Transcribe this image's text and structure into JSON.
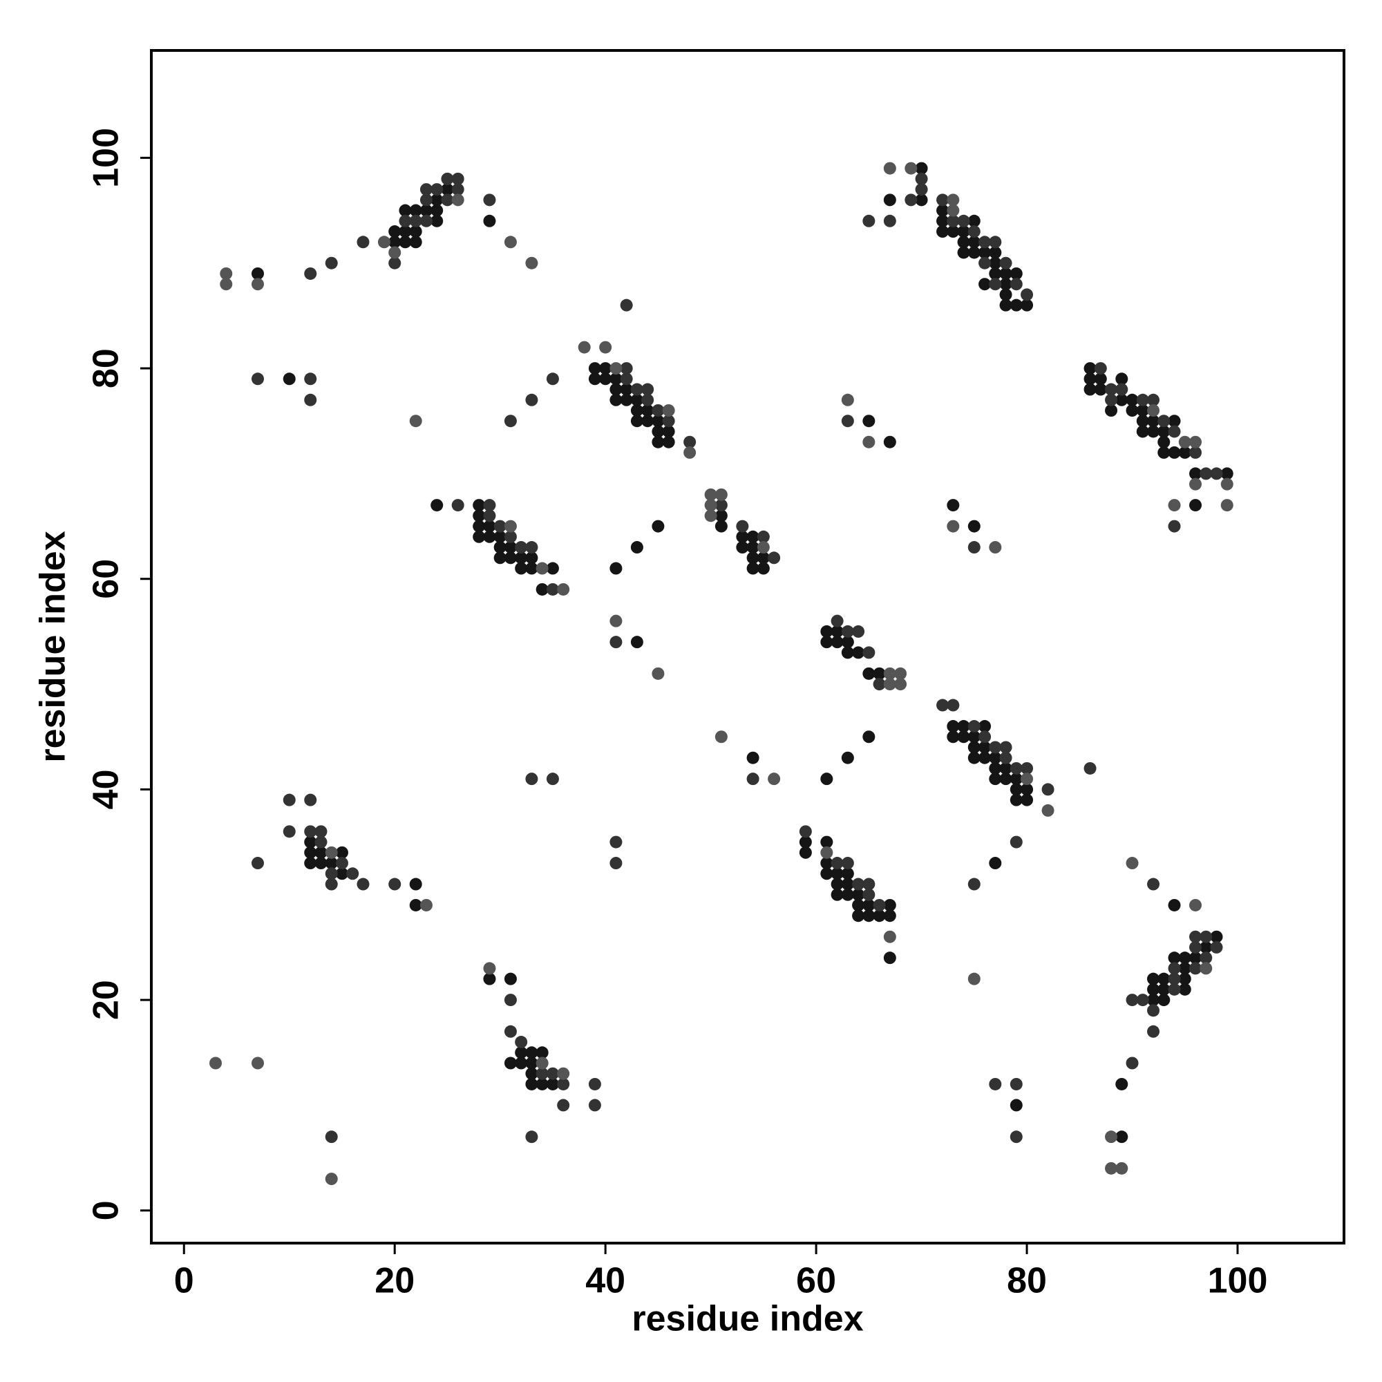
{
  "chart_data": {
    "type": "scatter",
    "x_label": "residue index",
    "y_label": "residue index",
    "xlim": [
      -3.1,
      110.1
    ],
    "ylim": [
      -3.1,
      110.2
    ],
    "xticks": [
      0,
      20,
      40,
      60,
      80,
      100
    ],
    "yticks": [
      0,
      20,
      40,
      60,
      80,
      100
    ],
    "grid": false,
    "series": [
      {
        "color": "#151515",
        "x": [
          7,
          20,
          20,
          21,
          21,
          21,
          22,
          22,
          22,
          23,
          24,
          24,
          24,
          25,
          29,
          70,
          70,
          67,
          72,
          72,
          72,
          73,
          74,
          74,
          75,
          75,
          74,
          75,
          76,
          77,
          77,
          76,
          77,
          78,
          78,
          79,
          78,
          78,
          79,
          80,
          10,
          39,
          40,
          39,
          40,
          41,
          41,
          42,
          41,
          42,
          43,
          43,
          44,
          43,
          44,
          45,
          45,
          46,
          45,
          46,
          65,
          67,
          86,
          86,
          87,
          86,
          87,
          89,
          89,
          88,
          90,
          90,
          91,
          91,
          92,
          91,
          92,
          93,
          93,
          94,
          93,
          94,
          95,
          96,
          99,
          96,
          24,
          28,
          28,
          28,
          29,
          28,
          29,
          30,
          30,
          31,
          30,
          31,
          32,
          33,
          32,
          33,
          35,
          34,
          41,
          43,
          45,
          51,
          51,
          53,
          54,
          53,
          54,
          54,
          55,
          54,
          55,
          73,
          75,
          43,
          61,
          62,
          61,
          62,
          63,
          63,
          64,
          65,
          66,
          54,
          61,
          63,
          65,
          73,
          74,
          76,
          73,
          74,
          75,
          75,
          76,
          75,
          76,
          77,
          77,
          78,
          77,
          78,
          79,
          79,
          80,
          79,
          80,
          12,
          12,
          13,
          15,
          12,
          13,
          14,
          15,
          22,
          22,
          59,
          61,
          59,
          61,
          61,
          62,
          63,
          62,
          63,
          62,
          63,
          64,
          64,
          65,
          67,
          64,
          65,
          66,
          67,
          67,
          77,
          94,
          98,
          97,
          94,
          95,
          96,
          95,
          92,
          93,
          95,
          92,
          93,
          95,
          92,
          93,
          29,
          31,
          32,
          33,
          34,
          31,
          32,
          33,
          33,
          33,
          34,
          35,
          79,
          89,
          89
        ],
        "values": [
          89,
          92,
          93,
          92,
          93,
          95,
          92,
          93,
          95,
          95,
          94,
          95,
          96,
          97,
          94,
          99,
          96,
          96,
          95,
          94,
          93,
          93,
          93,
          92,
          94,
          92,
          91,
          91,
          91,
          91,
          90,
          88,
          89,
          89,
          88,
          89,
          87,
          86,
          86,
          86,
          79,
          80,
          80,
          79,
          79,
          79,
          78,
          78,
          77,
          77,
          77,
          76,
          76,
          75,
          75,
          75,
          74,
          74,
          73,
          73,
          75,
          73,
          80,
          79,
          79,
          78,
          78,
          79,
          77,
          76,
          77,
          76,
          76,
          75,
          75,
          74,
          74,
          74,
          73,
          75,
          72,
          72,
          72,
          70,
          70,
          67,
          67,
          67,
          66,
          65,
          65,
          64,
          64,
          64,
          63,
          63,
          62,
          62,
          62,
          62,
          61,
          61,
          61,
          59,
          61,
          63,
          65,
          66,
          65,
          64,
          64,
          63,
          63,
          62,
          62,
          61,
          61,
          67,
          65,
          54,
          55,
          55,
          54,
          54,
          54,
          53,
          53,
          51,
          51,
          43,
          41,
          43,
          45,
          46,
          46,
          46,
          45,
          45,
          45,
          44,
          44,
          43,
          43,
          43,
          42,
          42,
          41,
          41,
          41,
          40,
          40,
          39,
          39,
          35,
          34,
          34,
          34,
          33,
          33,
          33,
          32,
          31,
          29,
          35,
          35,
          34,
          33,
          32,
          32,
          32,
          31,
          31,
          30,
          30,
          30,
          29,
          29,
          29,
          28,
          28,
          28,
          28,
          24,
          33,
          29,
          26,
          25,
          24,
          24,
          24,
          23,
          22,
          22,
          22,
          21,
          21,
          21,
          20,
          20,
          22,
          22,
          15,
          15,
          15,
          14,
          14,
          14,
          13,
          12,
          12,
          12,
          10,
          12,
          7
        ]
      },
      {
        "color": "#333333",
        "x": [
          12,
          14,
          17,
          20,
          22,
          21,
          23,
          23,
          23,
          24,
          25,
          25,
          26,
          26,
          29,
          70,
          70,
          69,
          65,
          67,
          72,
          73,
          74,
          75,
          76,
          76,
          77,
          78,
          77,
          79,
          80,
          42,
          7,
          12,
          12,
          31,
          33,
          35,
          42,
          42,
          43,
          44,
          44,
          45,
          46,
          48,
          63,
          87,
          88,
          88,
          89,
          91,
          92,
          93,
          94,
          96,
          97,
          98,
          94,
          26,
          29,
          29,
          30,
          31,
          32,
          33,
          35,
          51,
          53,
          55,
          56,
          75,
          41,
          62,
          63,
          64,
          65,
          66,
          54,
          72,
          73,
          75,
          76,
          77,
          78,
          78,
          79,
          80,
          82,
          86,
          33,
          35,
          10,
          12,
          10,
          12,
          13,
          13,
          15,
          14,
          16,
          14,
          17,
          7,
          20,
          41,
          41,
          59,
          62,
          63,
          64,
          65,
          65,
          66,
          75,
          79,
          92,
          96,
          97,
          96,
          98,
          97,
          94,
          96,
          94,
          94,
          90,
          91,
          92,
          92,
          31,
          31,
          32,
          34,
          35,
          36,
          39,
          36,
          39,
          14,
          33,
          77,
          79,
          79,
          90
        ],
        "values": [
          89,
          90,
          92,
          90,
          94,
          94,
          94,
          96,
          97,
          97,
          96,
          98,
          97,
          98,
          96,
          98,
          97,
          96,
          94,
          94,
          96,
          94,
          94,
          93,
          92,
          90,
          92,
          90,
          88,
          88,
          87,
          86,
          79,
          79,
          77,
          75,
          77,
          79,
          80,
          79,
          78,
          78,
          77,
          76,
          75,
          73,
          75,
          80,
          78,
          77,
          78,
          77,
          77,
          75,
          74,
          72,
          70,
          70,
          65,
          67,
          67,
          66,
          65,
          64,
          63,
          63,
          59,
          67,
          65,
          64,
          62,
          63,
          54,
          56,
          55,
          55,
          53,
          50,
          41,
          48,
          48,
          46,
          45,
          44,
          44,
          43,
          42,
          42,
          40,
          42,
          41,
          41,
          39,
          39,
          36,
          36,
          36,
          35,
          33,
          32,
          32,
          31,
          31,
          33,
          31,
          35,
          33,
          36,
          33,
          33,
          31,
          31,
          30,
          29,
          31,
          35,
          31,
          26,
          26,
          25,
          25,
          24,
          23,
          23,
          22,
          21,
          20,
          20,
          19,
          17,
          20,
          17,
          16,
          13,
          13,
          12,
          12,
          10,
          10,
          7,
          7,
          12,
          12,
          7,
          14
        ]
      },
      {
        "color": "#555555",
        "x": [
          4,
          4,
          7,
          19,
          20,
          26,
          31,
          33,
          67,
          69,
          73,
          73,
          22,
          38,
          40,
          41,
          46,
          48,
          63,
          65,
          92,
          95,
          96,
          96,
          99,
          94,
          99,
          31,
          34,
          36,
          50,
          51,
          50,
          50,
          55,
          73,
          77,
          41,
          45,
          67,
          67,
          68,
          68,
          51,
          56,
          80,
          82,
          14,
          23,
          61,
          67,
          90,
          96,
          97,
          75,
          29,
          34,
          36,
          3,
          7,
          14,
          88,
          88,
          89
        ],
        "values": [
          89,
          88,
          88,
          92,
          91,
          96,
          92,
          90,
          99,
          99,
          96,
          95,
          75,
          82,
          82,
          80,
          76,
          72,
          77,
          73,
          76,
          73,
          73,
          69,
          69,
          67,
          67,
          65,
          61,
          59,
          68,
          68,
          67,
          66,
          63,
          65,
          63,
          56,
          51,
          51,
          50,
          51,
          50,
          45,
          41,
          41,
          38,
          34,
          29,
          34,
          26,
          33,
          29,
          23,
          22,
          23,
          14,
          13,
          14,
          14,
          3,
          7,
          4,
          4
        ]
      }
    ]
  }
}
